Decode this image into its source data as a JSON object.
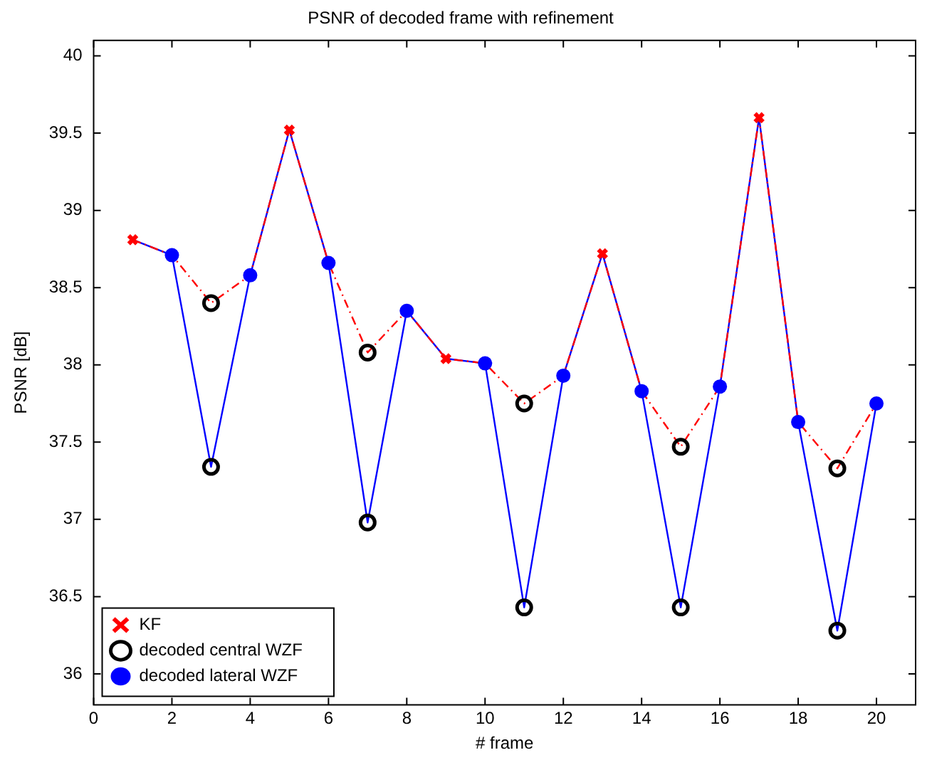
{
  "chart_data": {
    "type": "scatter",
    "title": "PSNR of decoded frame with refinement",
    "xlabel": "# frame",
    "ylabel": "PSNR [dB]",
    "xlim": [
      0,
      21
    ],
    "xticks": [
      0,
      2,
      4,
      6,
      8,
      10,
      12,
      14,
      16,
      18,
      20
    ],
    "ylim": [
      35.8,
      40.1
    ],
    "yticks": [
      36,
      36.5,
      37,
      37.5,
      38,
      38.5,
      39,
      39.5,
      40
    ],
    "grid": false,
    "legend": "bottom left",
    "series": [
      {
        "type": "line",
        "color": "#ff0000",
        "line_style": "dashed",
        "marker": "none",
        "x": [
          1,
          2,
          3,
          4,
          5,
          6,
          7,
          8,
          9,
          10,
          11,
          12,
          13,
          14,
          15,
          16,
          17,
          18,
          19,
          20
        ],
        "values": [
          38.81,
          38.71,
          38.4,
          38.58,
          39.52,
          38.66,
          38.08,
          38.35,
          38.04,
          38.01,
          37.75,
          37.93,
          38.72,
          37.83,
          37.47,
          37.86,
          39.6,
          37.63,
          37.33,
          37.75
        ]
      },
      {
        "type": "line",
        "color": "#0000ff",
        "line_style": "solid",
        "marker": "none",
        "x": [
          1,
          2,
          3,
          4,
          5,
          6,
          7,
          8,
          9,
          10,
          11,
          12,
          13,
          14,
          15,
          16,
          17,
          18,
          19,
          20
        ],
        "values": [
          38.81,
          38.71,
          37.34,
          38.58,
          39.52,
          38.66,
          36.98,
          38.35,
          38.04,
          38.01,
          36.43,
          37.93,
          38.72,
          37.83,
          36.43,
          37.86,
          39.6,
          37.63,
          36.28,
          37.75
        ]
      },
      {
        "name": "KF",
        "type": "scatter",
        "color": "#ff0000",
        "marker": "cross",
        "x": [
          1,
          5,
          9,
          13,
          17
        ],
        "values": [
          38.81,
          39.52,
          38.04,
          38.72,
          39.6
        ]
      },
      {
        "name": "decoded central WZF",
        "type": "scatter",
        "color": "#000000",
        "marker": "circle",
        "x": [
          3,
          3,
          7,
          7,
          11,
          11,
          15,
          15,
          19,
          19
        ],
        "values": [
          38.4,
          37.34,
          38.08,
          36.98,
          37.75,
          36.43,
          37.47,
          36.43,
          37.33,
          36.28
        ]
      },
      {
        "name": "decoded lateral WZF",
        "type": "scatter",
        "color": "#0000ff",
        "marker": "circle",
        "x": [
          2,
          4,
          6,
          8,
          10,
          12,
          14,
          16,
          18,
          20
        ],
        "values": [
          38.71,
          38.58,
          38.66,
          38.35,
          38.01,
          37.93,
          37.83,
          37.86,
          37.63,
          37.75
        ]
      }
    ]
  }
}
